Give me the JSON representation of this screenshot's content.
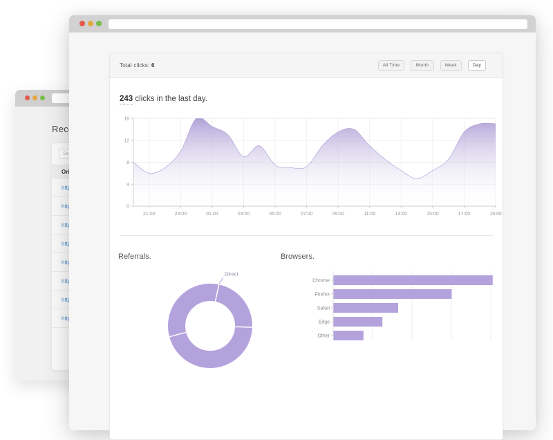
{
  "colors": {
    "accent_purple": "#b3a2dc",
    "area_fill_top": "#9d8cce",
    "link_blue": "#4a90d2",
    "traffic_red": "#e3594b",
    "traffic_yellow": "#e5a73e",
    "traffic_green": "#77bf4b"
  },
  "back_window": {
    "heading": "Recen",
    "search_placeholder": "Sear",
    "table_header": "Origi",
    "rows": [
      "https:",
      "https:",
      "https:",
      "https:",
      "https:",
      "https:",
      "https:",
      "https:"
    ]
  },
  "front_window": {
    "total_clicks_label": "Total clicks:",
    "total_clicks_value": "6",
    "filters": [
      {
        "label": "All Time",
        "active": false
      },
      {
        "label": "Month",
        "active": false
      },
      {
        "label": "Week",
        "active": false
      },
      {
        "label": "Day",
        "active": true
      }
    ],
    "headline_count": "243",
    "headline_rest": " clicks in the last day.",
    "referrals_title": "Referrals.",
    "browsers_title": "Browsers."
  },
  "chart_data": [
    {
      "type": "area",
      "title": "243 clicks in the last day.",
      "x_hours": [
        "20:00",
        "21:00",
        "22:00",
        "23:00",
        "00:00",
        "01:00",
        "02:00",
        "03:00",
        "04:00",
        "05:00",
        "06:00",
        "07:00",
        "08:00",
        "09:00",
        "10:00",
        "11:00",
        "12:00",
        "13:00",
        "14:00",
        "15:00",
        "16:00",
        "17:00",
        "18:00",
        "19:00"
      ],
      "values": [
        8,
        6,
        7,
        10,
        16,
        14.5,
        13,
        9,
        11,
        7.5,
        7,
        7.2,
        11,
        13.5,
        14,
        11,
        8.5,
        6.5,
        5,
        6.5,
        8.5,
        13.5,
        15,
        15
      ],
      "x_tick_labels": [
        "21:00",
        "23:00",
        "01:00",
        "03:00",
        "05:00",
        "07:00",
        "09:00",
        "11:00",
        "13:00",
        "15:00",
        "17:00",
        "19:00"
      ],
      "ylim": [
        0,
        16
      ],
      "yticks": [
        0,
        4,
        8,
        12,
        16
      ],
      "grid": true,
      "legend": "none"
    },
    {
      "type": "pie",
      "title": "Referrals.",
      "donut": true,
      "labels": [
        "Direct"
      ],
      "label_angle_deg": 12,
      "separator_angles_deg": [
        12,
        92,
        255
      ],
      "note": "single-color donut, only 'Direct' label visible, chart cut off at bottom"
    },
    {
      "type": "bar",
      "title": "Browsers.",
      "orientation": "horizontal",
      "categories": [
        "Chrome",
        "Firefox",
        "Safari",
        "Edge",
        "Other"
      ],
      "values": [
        202,
        150,
        82,
        62,
        38
      ],
      "xlim": [
        0,
        215
      ],
      "gridline_step": 50,
      "axis_labels_visible": false
    }
  ]
}
